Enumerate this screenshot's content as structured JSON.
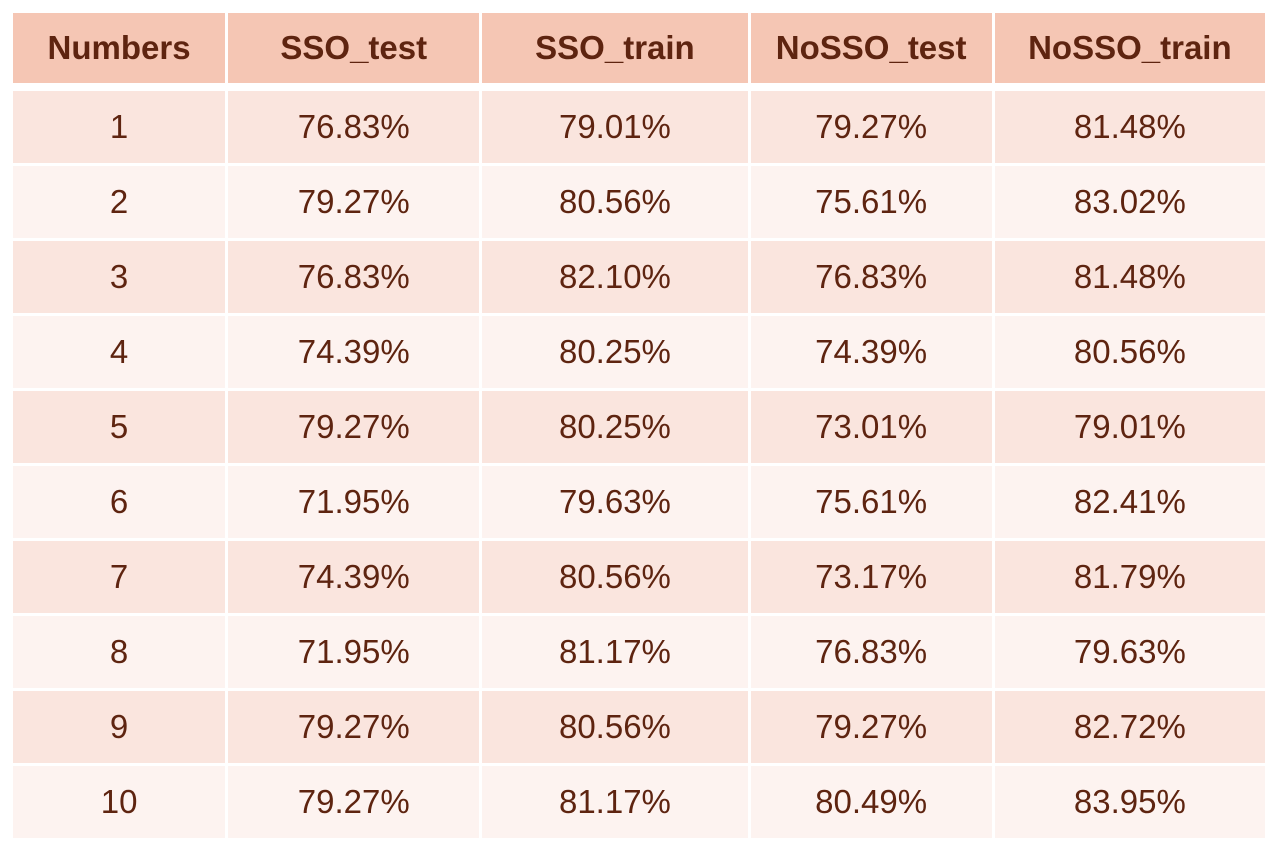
{
  "chart_data": {
    "type": "table",
    "columns": [
      "Numbers",
      "SSO_test",
      "SSO_train",
      "NoSSO_test",
      "NoSSO_train"
    ],
    "rows": [
      [
        "1",
        "76.83%",
        "79.01%",
        "79.27%",
        "81.48%"
      ],
      [
        "2",
        "79.27%",
        "80.56%",
        "75.61%",
        "83.02%"
      ],
      [
        "3",
        "76.83%",
        "82.10%",
        "76.83%",
        "81.48%"
      ],
      [
        "4",
        "74.39%",
        "80.25%",
        "74.39%",
        "80.56%"
      ],
      [
        "5",
        "79.27%",
        "80.25%",
        "73.01%",
        "79.01%"
      ],
      [
        "6",
        "71.95%",
        "79.63%",
        "75.61%",
        "82.41%"
      ],
      [
        "7",
        "74.39%",
        "80.56%",
        "73.17%",
        "81.79%"
      ],
      [
        "8",
        "71.95%",
        "81.17%",
        "76.83%",
        "79.63%"
      ],
      [
        "9",
        "79.27%",
        "80.56%",
        "79.27%",
        "82.72%"
      ],
      [
        "10",
        "79.27%",
        "81.17%",
        "80.49%",
        "83.95%"
      ]
    ],
    "colors": {
      "header_bg": "#f5c6b4",
      "row_odd_bg": "#fae5de",
      "row_even_bg": "#fdf3f0",
      "text": "#5e2410"
    }
  }
}
